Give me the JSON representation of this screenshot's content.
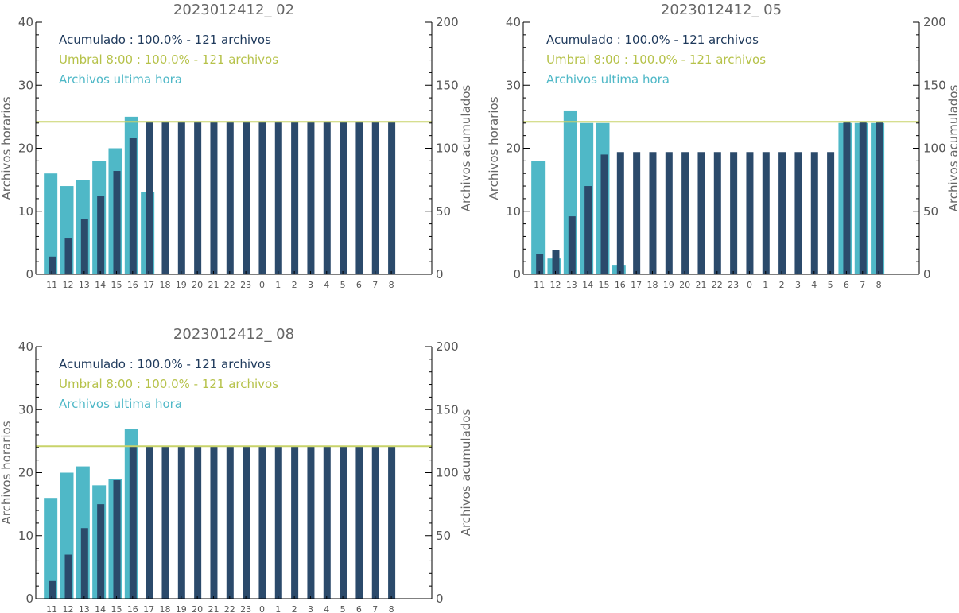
{
  "colors": {
    "hourly": "#4fb8c7",
    "accumulated": "#2b4a6b",
    "threshold": "#c8d36a",
    "accumulated_legend": "#1f3a5c",
    "threshold_legend": "#b6c24a",
    "hourly_legend": "#4fb8c7"
  },
  "chart_data": [
    {
      "type": "bar",
      "title": "2023012412_ 02",
      "ylabel": "Archivos horarios",
      "y2label": "Archivos acumulados",
      "ylim": [
        0,
        40
      ],
      "y2lim": [
        0,
        200
      ],
      "yticks": [
        0,
        10,
        20,
        30,
        40
      ],
      "y2ticks": [
        0,
        50,
        100,
        150,
        200
      ],
      "categories": [
        "11",
        "12",
        "13",
        "14",
        "15",
        "16",
        "17",
        "18",
        "19",
        "20",
        "21",
        "22",
        "23",
        "0",
        "1",
        "2",
        "3",
        "4",
        "5",
        "6",
        "7",
        "8"
      ],
      "legend": [
        "Acumulado : 100.0% - 121 archivos",
        "Umbral 8:00 : 100.0% - 121 archivos",
        "Archivos ultima hora"
      ],
      "threshold": 121,
      "series": [
        {
          "name": "Archivos ultima hora",
          "axis": "left",
          "values": [
            16,
            14,
            15,
            18,
            20,
            25,
            13,
            0,
            0,
            0,
            0,
            0,
            0,
            0,
            0,
            0,
            0,
            0,
            0,
            0,
            0,
            0
          ]
        },
        {
          "name": "Acumulado",
          "axis": "right",
          "values": [
            14,
            29,
            44,
            62,
            82,
            108,
            121,
            121,
            121,
            121,
            121,
            121,
            121,
            121,
            121,
            121,
            121,
            121,
            121,
            121,
            121,
            121
          ]
        }
      ]
    },
    {
      "type": "bar",
      "title": "2023012412_ 05",
      "ylabel": "Archivos horarios",
      "y2label": "Archivos acumulados",
      "ylim": [
        0,
        40
      ],
      "y2lim": [
        0,
        200
      ],
      "yticks": [
        0,
        10,
        20,
        30,
        40
      ],
      "y2ticks": [
        0,
        50,
        100,
        150,
        200
      ],
      "categories": [
        "11",
        "12",
        "13",
        "14",
        "15",
        "16",
        "17",
        "18",
        "19",
        "20",
        "21",
        "22",
        "23",
        "0",
        "1",
        "2",
        "3",
        "4",
        "5",
        "6",
        "7",
        "8"
      ],
      "legend": [
        "Acumulado : 100.0% - 121 archivos",
        "Umbral 8:00 : 100.0% - 121 archivos",
        "Archivos ultima hora"
      ],
      "threshold": 121,
      "series": [
        {
          "name": "Archivos ultima hora",
          "axis": "left",
          "values": [
            18,
            2.5,
            26,
            24,
            24,
            1.5,
            0,
            0,
            0,
            0,
            0,
            0,
            0,
            0,
            0,
            0,
            0,
            0,
            0,
            24,
            24,
            24
          ]
        },
        {
          "name": "Acumulado",
          "axis": "right",
          "values": [
            16,
            19,
            46,
            70,
            95,
            97,
            97,
            97,
            97,
            97,
            97,
            97,
            97,
            97,
            97,
            97,
            97,
            97,
            97,
            121,
            121,
            121
          ]
        }
      ]
    },
    {
      "type": "bar",
      "title": "2023012412_ 08",
      "ylabel": "Archivos horarios",
      "y2label": "Archivos acumulados",
      "ylim": [
        0,
        40
      ],
      "y2lim": [
        0,
        200
      ],
      "yticks": [
        0,
        10,
        20,
        30,
        40
      ],
      "y2ticks": [
        0,
        50,
        100,
        150,
        200
      ],
      "categories": [
        "11",
        "12",
        "13",
        "14",
        "15",
        "16",
        "17",
        "18",
        "19",
        "20",
        "21",
        "22",
        "23",
        "0",
        "1",
        "2",
        "3",
        "4",
        "5",
        "6",
        "7",
        "8"
      ],
      "legend": [
        "Acumulado : 100.0% - 121 archivos",
        "Umbral 8:00 : 100.0% - 121 archivos",
        "Archivos ultima hora"
      ],
      "threshold": 121,
      "series": [
        {
          "name": "Archivos ultima hora",
          "axis": "left",
          "values": [
            16,
            20,
            21,
            18,
            19,
            27,
            0,
            0,
            0,
            0,
            0,
            0,
            0,
            0,
            0,
            0,
            0,
            0,
            0,
            0,
            0,
            0
          ]
        },
        {
          "name": "Acumulado",
          "axis": "right",
          "values": [
            14,
            35,
            56,
            75,
            94,
            121,
            121,
            121,
            121,
            121,
            121,
            121,
            121,
            121,
            121,
            121,
            121,
            121,
            121,
            121,
            121,
            121
          ]
        }
      ]
    }
  ]
}
